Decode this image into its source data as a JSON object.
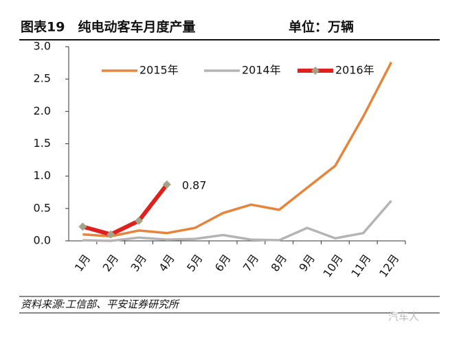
{
  "title": "图表19　纯电动客车月度产量",
  "unit": "单位：万辆",
  "source": "资料来源:工信部、平安证券研究所",
  "watermark": "汽车人",
  "chart_data": {
    "type": "line",
    "categories": [
      "1月",
      "2月",
      "3月",
      "4月",
      "5月",
      "6月",
      "7月",
      "8月",
      "9月",
      "10月",
      "11月",
      "12月"
    ],
    "series": [
      {
        "name": "2015年",
        "color": "#e8843a",
        "values": [
          0.1,
          0.07,
          0.16,
          0.12,
          0.2,
          0.43,
          0.56,
          0.48,
          0.82,
          1.16,
          1.92,
          2.76
        ]
      },
      {
        "name": "2014年",
        "color": "#b4b4b4",
        "values": [
          0.01,
          0.0,
          0.05,
          0.02,
          0.03,
          0.09,
          0.02,
          0.01,
          0.2,
          0.04,
          0.12,
          0.62
        ]
      },
      {
        "name": "2016年",
        "color": "#e0201c",
        "marker_color": "#a3a38a",
        "values": [
          0.22,
          0.1,
          0.31,
          0.87,
          null,
          null,
          null,
          null,
          null,
          null,
          null,
          null
        ]
      }
    ],
    "annotations": [
      {
        "series": 2,
        "index": 3
      }
    ],
    "ylim": [
      0,
      3
    ],
    "yticks": [
      {
        "value": 0,
        "label": "0.0"
      },
      {
        "value": 0.5,
        "label": "0.5"
      },
      {
        "value": 1,
        "label": "1.0"
      },
      {
        "value": 1.5,
        "label": "1.5"
      },
      {
        "value": 2,
        "label": "2.0"
      },
      {
        "value": 2.5,
        "label": "2.5"
      },
      {
        "value": 3,
        "label": "3.0"
      }
    ],
    "legend": "top"
  }
}
